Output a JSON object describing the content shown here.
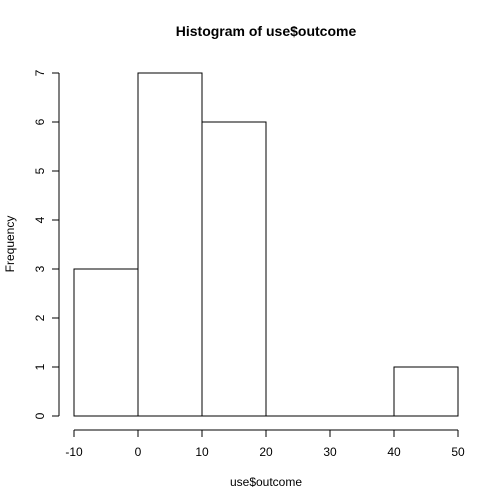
{
  "chart_data": {
    "type": "bar",
    "title": "Histogram of use$outcome",
    "xlabel": "use$outcome",
    "ylabel": "Frequency",
    "bins": [
      {
        "from": -10,
        "to": 0,
        "count": 3
      },
      {
        "from": 0,
        "to": 10,
        "count": 7
      },
      {
        "from": 10,
        "to": 20,
        "count": 6
      },
      {
        "from": 20,
        "to": 30,
        "count": 0
      },
      {
        "from": 30,
        "to": 40,
        "count": 0
      },
      {
        "from": 40,
        "to": 50,
        "count": 1
      }
    ],
    "xlim": [
      -10,
      50
    ],
    "ylim": [
      0,
      7
    ],
    "x_ticks": [
      "-10",
      "0",
      "10",
      "20",
      "30",
      "40",
      "50"
    ],
    "y_ticks": [
      "0",
      "1",
      "2",
      "3",
      "4",
      "5",
      "6",
      "7"
    ],
    "grid": false,
    "legend": "none"
  }
}
